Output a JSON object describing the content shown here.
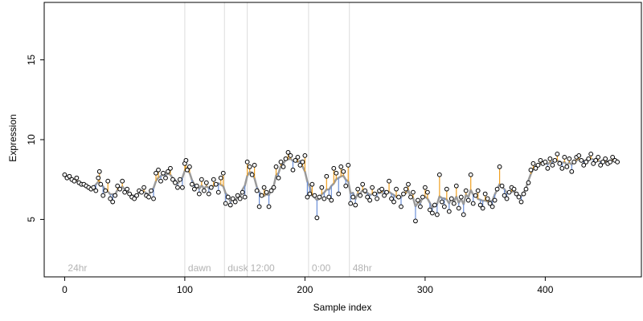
{
  "chart_data": {
    "type": "scatter",
    "xlabel": "Sample index",
    "ylabel": "Expression",
    "xlim": [
      -17,
      480
    ],
    "ylim": [
      1.4,
      18.6
    ],
    "xticks": [
      0,
      100,
      200,
      300,
      400
    ],
    "yticks": [
      5,
      10,
      15
    ],
    "phases": [
      {
        "label": "24hr",
        "x": 0
      },
      {
        "label": "dawn",
        "x": 100
      },
      {
        "label": "dusk",
        "x": 133
      },
      {
        "label": "12:00",
        "x": 152
      },
      {
        "label": "0:00",
        "x": 203
      },
      {
        "label": "48hr",
        "x": 237
      }
    ],
    "points": [
      [
        0,
        7.8
      ],
      [
        2,
        7.6
      ],
      [
        4,
        7.7
      ],
      [
        6,
        7.5
      ],
      [
        8,
        7.4
      ],
      [
        10,
        7.6
      ],
      [
        12,
        7.3
      ],
      [
        14,
        7.2
      ],
      [
        16,
        7.2
      ],
      [
        18,
        7.1
      ],
      [
        20,
        7.0
      ],
      [
        22,
        6.9
      ],
      [
        24,
        7.0
      ],
      [
        26,
        6.8
      ],
      [
        28,
        7.6
      ],
      [
        29,
        8.0
      ],
      [
        30,
        7.2
      ],
      [
        32,
        6.5
      ],
      [
        34,
        6.8
      ],
      [
        36,
        7.4
      ],
      [
        38,
        6.3
      ],
      [
        40,
        6.1
      ],
      [
        42,
        6.5
      ],
      [
        44,
        7.1
      ],
      [
        46,
        6.9
      ],
      [
        48,
        7.4
      ],
      [
        50,
        6.7
      ],
      [
        52,
        6.9
      ],
      [
        54,
        6.6
      ],
      [
        56,
        6.4
      ],
      [
        58,
        6.3
      ],
      [
        60,
        6.5
      ],
      [
        62,
        6.8
      ],
      [
        64,
        6.7
      ],
      [
        66,
        7.0
      ],
      [
        68,
        6.5
      ],
      [
        70,
        6.4
      ],
      [
        72,
        6.8
      ],
      [
        74,
        6.3
      ],
      [
        76,
        7.9
      ],
      [
        78,
        8.1
      ],
      [
        80,
        7.4
      ],
      [
        82,
        7.9
      ],
      [
        84,
        7.6
      ],
      [
        86,
        8.0
      ],
      [
        88,
        8.2
      ],
      [
        90,
        7.5
      ],
      [
        92,
        7.3
      ],
      [
        94,
        7.0
      ],
      [
        96,
        7.5
      ],
      [
        98,
        7.0
      ],
      [
        100,
        8.5
      ],
      [
        101,
        8.7
      ],
      [
        102,
        8.1
      ],
      [
        104,
        8.3
      ],
      [
        106,
        7.2
      ],
      [
        108,
        6.9
      ],
      [
        110,
        7.1
      ],
      [
        112,
        6.6
      ],
      [
        114,
        7.5
      ],
      [
        116,
        6.8
      ],
      [
        118,
        7.3
      ],
      [
        120,
        6.6
      ],
      [
        122,
        7.0
      ],
      [
        124,
        7.5
      ],
      [
        126,
        7.2
      ],
      [
        128,
        6.7
      ],
      [
        130,
        7.6
      ],
      [
        132,
        7.9
      ],
      [
        134,
        6.0
      ],
      [
        136,
        6.4
      ],
      [
        138,
        5.9
      ],
      [
        140,
        6.3
      ],
      [
        142,
        6.1
      ],
      [
        144,
        6.5
      ],
      [
        146,
        6.3
      ],
      [
        148,
        6.7
      ],
      [
        150,
        6.4
      ],
      [
        152,
        8.6
      ],
      [
        154,
        8.3
      ],
      [
        156,
        7.8
      ],
      [
        158,
        8.4
      ],
      [
        160,
        6.8
      ],
      [
        162,
        5.8
      ],
      [
        164,
        6.5
      ],
      [
        166,
        7.0
      ],
      [
        168,
        6.7
      ],
      [
        170,
        5.8
      ],
      [
        172,
        6.8
      ],
      [
        174,
        7.0
      ],
      [
        176,
        8.3
      ],
      [
        178,
        7.6
      ],
      [
        180,
        8.6
      ],
      [
        182,
        8.3
      ],
      [
        184,
        8.8
      ],
      [
        186,
        9.2
      ],
      [
        188,
        9.0
      ],
      [
        190,
        8.1
      ],
      [
        192,
        8.7
      ],
      [
        194,
        8.9
      ],
      [
        196,
        8.4
      ],
      [
        198,
        8.6
      ],
      [
        200,
        9.0
      ],
      [
        202,
        6.4
      ],
      [
        204,
        6.6
      ],
      [
        206,
        7.2
      ],
      [
        208,
        6.5
      ],
      [
        210,
        5.1
      ],
      [
        212,
        6.4
      ],
      [
        214,
        7.0
      ],
      [
        216,
        6.3
      ],
      [
        218,
        7.7
      ],
      [
        220,
        6.4
      ],
      [
        222,
        6.2
      ],
      [
        224,
        8.2
      ],
      [
        226,
        7.9
      ],
      [
        228,
        6.6
      ],
      [
        230,
        8.3
      ],
      [
        232,
        8.0
      ],
      [
        234,
        7.1
      ],
      [
        236,
        8.4
      ],
      [
        238,
        6.0
      ],
      [
        240,
        6.4
      ],
      [
        242,
        5.9
      ],
      [
        244,
        6.9
      ],
      [
        246,
        6.5
      ],
      [
        248,
        7.2
      ],
      [
        250,
        6.8
      ],
      [
        252,
        6.4
      ],
      [
        254,
        6.2
      ],
      [
        256,
        7.0
      ],
      [
        258,
        6.6
      ],
      [
        260,
        6.3
      ],
      [
        262,
        6.8
      ],
      [
        264,
        6.9
      ],
      [
        266,
        6.5
      ],
      [
        268,
        6.7
      ],
      [
        270,
        7.4
      ],
      [
        272,
        6.3
      ],
      [
        274,
        6.1
      ],
      [
        276,
        6.9
      ],
      [
        278,
        6.4
      ],
      [
        280,
        5.8
      ],
      [
        282,
        6.6
      ],
      [
        284,
        6.9
      ],
      [
        286,
        7.2
      ],
      [
        288,
        6.4
      ],
      [
        290,
        6.7
      ],
      [
        292,
        4.9
      ],
      [
        294,
        6.2
      ],
      [
        296,
        5.8
      ],
      [
        298,
        6.4
      ],
      [
        300,
        7.0
      ],
      [
        302,
        6.7
      ],
      [
        304,
        5.6
      ],
      [
        306,
        5.4
      ],
      [
        308,
        5.9
      ],
      [
        310,
        5.3
      ],
      [
        312,
        7.8
      ],
      [
        314,
        6.1
      ],
      [
        316,
        5.8
      ],
      [
        318,
        6.9
      ],
      [
        320,
        5.5
      ],
      [
        322,
        6.3
      ],
      [
        324,
        6.0
      ],
      [
        326,
        7.1
      ],
      [
        328,
        5.7
      ],
      [
        330,
        6.4
      ],
      [
        332,
        5.3
      ],
      [
        334,
        6.8
      ],
      [
        336,
        6.2
      ],
      [
        338,
        7.8
      ],
      [
        340,
        6.0
      ],
      [
        342,
        6.5
      ],
      [
        344,
        6.8
      ],
      [
        346,
        5.9
      ],
      [
        348,
        5.7
      ],
      [
        350,
        6.6
      ],
      [
        352,
        6.3
      ],
      [
        354,
        6.0
      ],
      [
        356,
        5.8
      ],
      [
        358,
        6.2
      ],
      [
        360,
        6.9
      ],
      [
        362,
        8.3
      ],
      [
        364,
        7.1
      ],
      [
        366,
        6.5
      ],
      [
        368,
        6.3
      ],
      [
        370,
        6.7
      ],
      [
        372,
        7.0
      ],
      [
        374,
        6.9
      ],
      [
        376,
        6.6
      ],
      [
        378,
        6.4
      ],
      [
        380,
        6.1
      ],
      [
        382,
        6.6
      ],
      [
        384,
        6.9
      ],
      [
        386,
        7.3
      ],
      [
        388,
        8.1
      ],
      [
        390,
        8.5
      ],
      [
        392,
        8.2
      ],
      [
        394,
        8.4
      ],
      [
        396,
        8.7
      ],
      [
        398,
        8.5
      ],
      [
        400,
        8.6
      ],
      [
        402,
        8.2
      ],
      [
        404,
        8.8
      ],
      [
        406,
        8.4
      ],
      [
        408,
        8.7
      ],
      [
        410,
        9.1
      ],
      [
        412,
        8.5
      ],
      [
        414,
        8.2
      ],
      [
        416,
        8.9
      ],
      [
        418,
        8.3
      ],
      [
        420,
        8.8
      ],
      [
        422,
        8.0
      ],
      [
        424,
        8.6
      ],
      [
        426,
        8.9
      ],
      [
        428,
        9.0
      ],
      [
        430,
        8.7
      ],
      [
        432,
        8.4
      ],
      [
        434,
        8.6
      ],
      [
        436,
        8.8
      ],
      [
        438,
        9.1
      ],
      [
        440,
        8.5
      ],
      [
        442,
        8.7
      ],
      [
        444,
        8.9
      ],
      [
        446,
        8.4
      ],
      [
        448,
        8.6
      ],
      [
        450,
        8.8
      ],
      [
        452,
        8.5
      ],
      [
        454,
        8.6
      ],
      [
        456,
        8.9
      ],
      [
        458,
        8.7
      ],
      [
        460,
        8.6
      ]
    ]
  }
}
